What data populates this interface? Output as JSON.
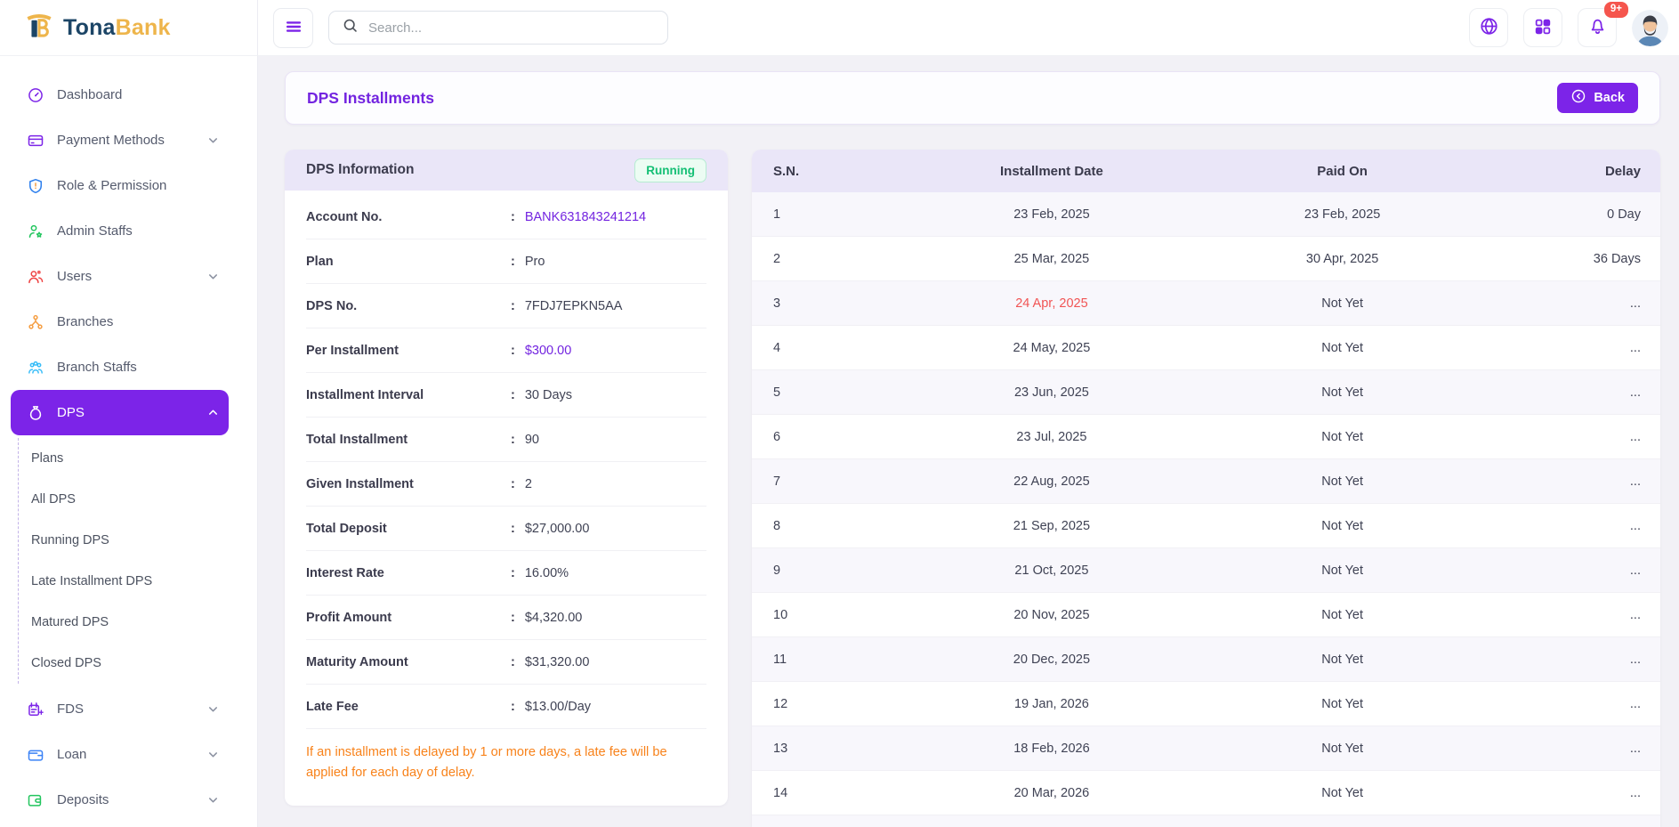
{
  "colors": {
    "accent": "#7c24e8",
    "title_purple": "#7324e0",
    "brand_navy": "#1c4566",
    "brand_gold": "#eeb54b",
    "status_green": "#13bf74",
    "late_red": "#f15454",
    "note_orange": "#f8821a",
    "badge_red": "#f5554d",
    "header_strip": "#eae6f8"
  },
  "brand": {
    "name_primary": "Tona",
    "name_secondary": "Bank"
  },
  "topbar": {
    "search_placeholder": "Search...",
    "notification_count": "9+"
  },
  "sidebar": {
    "items": [
      {
        "label": "Dashboard",
        "icon": "dashboard-icon",
        "color": "#7c24e8",
        "chevron": false,
        "active": false
      },
      {
        "label": "Payment Methods",
        "icon": "credit-card-icon",
        "color": "#7c24e8",
        "chevron": true,
        "active": false
      },
      {
        "label": "Role & Permission",
        "icon": "shield-icon",
        "color": "#2f80ed",
        "chevron": false,
        "active": false
      },
      {
        "label": "Admin Staffs",
        "icon": "person-star-icon",
        "color": "#22c55e",
        "chevron": false,
        "active": false
      },
      {
        "label": "Users",
        "icon": "users-icon",
        "color": "#ef4444",
        "chevron": true,
        "active": false
      },
      {
        "label": "Branches",
        "icon": "network-icon",
        "color": "#f59e42",
        "chevron": false,
        "active": false
      },
      {
        "label": "Branch Staffs",
        "icon": "people-group-icon",
        "color": "#38bdf8",
        "chevron": false,
        "active": false
      },
      {
        "label": "DPS",
        "icon": "money-bag-icon",
        "color": "#ffffff",
        "chevron": true,
        "active": true,
        "expanded": true,
        "children": [
          "Plans",
          "All DPS",
          "Running DPS",
          "Late Installment DPS",
          "Matured DPS",
          "Closed DPS"
        ]
      },
      {
        "label": "FDS",
        "icon": "savings-icon",
        "color": "#7c24e8",
        "chevron": true,
        "active": false
      },
      {
        "label": "Loan",
        "icon": "loan-wallet-icon",
        "color": "#3b82f6",
        "chevron": true,
        "active": false
      },
      {
        "label": "Deposits",
        "icon": "deposit-wallet-icon",
        "color": "#22c55e",
        "chevron": true,
        "active": false
      }
    ]
  },
  "page": {
    "title": "DPS Installments",
    "back_label": "Back"
  },
  "dps_info": {
    "title": "DPS Information",
    "status": "Running",
    "rows": [
      {
        "label": "Account No.",
        "value": "BANK631843241214",
        "highlight": true
      },
      {
        "label": "Plan",
        "value": "Pro",
        "highlight": false
      },
      {
        "label": "DPS No.",
        "value": "7FDJ7EPKN5AA",
        "highlight": false
      },
      {
        "label": "Per Installment",
        "value": "$300.00",
        "highlight": true
      },
      {
        "label": "Installment Interval",
        "value": "30 Days",
        "highlight": false
      },
      {
        "label": "Total Installment",
        "value": "90",
        "highlight": false
      },
      {
        "label": "Given Installment",
        "value": "2",
        "highlight": false
      },
      {
        "label": "Total Deposit",
        "value": "$27,000.00",
        "highlight": false
      },
      {
        "label": "Interest Rate",
        "value": "16.00%",
        "highlight": false
      },
      {
        "label": "Profit Amount",
        "value": "$4,320.00",
        "highlight": false
      },
      {
        "label": "Maturity Amount",
        "value": "$31,320.00",
        "highlight": false
      },
      {
        "label": "Late Fee",
        "value": "$13.00/Day",
        "highlight": false
      }
    ],
    "note": "If an installment is delayed by 1 or more days, a late fee will be applied for each day of delay."
  },
  "table": {
    "columns": [
      "S.N.",
      "Installment Date",
      "Paid On",
      "Delay"
    ],
    "rows": [
      {
        "sn": "1",
        "date": "23 Feb, 2025",
        "late": false,
        "paid": "23 Feb, 2025",
        "delay": "0 Day"
      },
      {
        "sn": "2",
        "date": "25 Mar, 2025",
        "late": false,
        "paid": "30 Apr, 2025",
        "delay": "36 Days"
      },
      {
        "sn": "3",
        "date": "24 Apr, 2025",
        "late": true,
        "paid": "Not Yet",
        "delay": "..."
      },
      {
        "sn": "4",
        "date": "24 May, 2025",
        "late": false,
        "paid": "Not Yet",
        "delay": "..."
      },
      {
        "sn": "5",
        "date": "23 Jun, 2025",
        "late": false,
        "paid": "Not Yet",
        "delay": "..."
      },
      {
        "sn": "6",
        "date": "23 Jul, 2025",
        "late": false,
        "paid": "Not Yet",
        "delay": "..."
      },
      {
        "sn": "7",
        "date": "22 Aug, 2025",
        "late": false,
        "paid": "Not Yet",
        "delay": "..."
      },
      {
        "sn": "8",
        "date": "21 Sep, 2025",
        "late": false,
        "paid": "Not Yet",
        "delay": "..."
      },
      {
        "sn": "9",
        "date": "21 Oct, 2025",
        "late": false,
        "paid": "Not Yet",
        "delay": "..."
      },
      {
        "sn": "10",
        "date": "20 Nov, 2025",
        "late": false,
        "paid": "Not Yet",
        "delay": "..."
      },
      {
        "sn": "11",
        "date": "20 Dec, 2025",
        "late": false,
        "paid": "Not Yet",
        "delay": "..."
      },
      {
        "sn": "12",
        "date": "19 Jan, 2026",
        "late": false,
        "paid": "Not Yet",
        "delay": "..."
      },
      {
        "sn": "13",
        "date": "18 Feb, 2026",
        "late": false,
        "paid": "Not Yet",
        "delay": "..."
      },
      {
        "sn": "14",
        "date": "20 Mar, 2026",
        "late": false,
        "paid": "Not Yet",
        "delay": "..."
      }
    ]
  }
}
